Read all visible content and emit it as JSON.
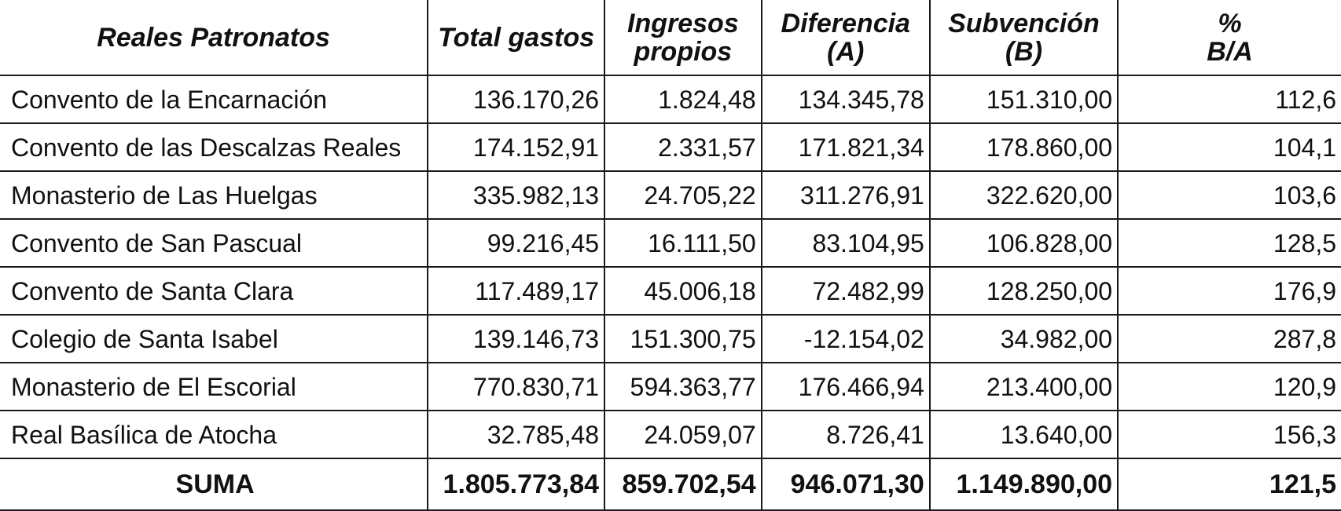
{
  "table": {
    "headers": [
      "Reales Patronatos",
      "Total gastos",
      "Ingresos\npropios",
      "Diferencia\n(A)",
      "Subvención\n(B)",
      "%\nB/A"
    ],
    "rows": [
      [
        "Convento de la Encarnación",
        "136.170,26",
        "1.824,48",
        "134.345,78",
        "151.310,00",
        "112,6"
      ],
      [
        "Convento de las Descalzas Reales",
        "174.152,91",
        "2.331,57",
        "171.821,34",
        "178.860,00",
        "104,1"
      ],
      [
        "Monasterio de Las Huelgas",
        "335.982,13",
        "24.705,22",
        "311.276,91",
        "322.620,00",
        "103,6"
      ],
      [
        "Convento de San Pascual",
        "99.216,45",
        "16.111,50",
        "83.104,95",
        "106.828,00",
        "128,5"
      ],
      [
        "Convento de Santa Clara",
        "117.489,17",
        "45.006,18",
        "72.482,99",
        "128.250,00",
        "176,9"
      ],
      [
        "Colegio de Santa Isabel",
        "139.146,73",
        "151.300,75",
        "-12.154,02",
        "34.982,00",
        "287,8"
      ],
      [
        "Monasterio de El Escorial",
        "770.830,71",
        "594.363,77",
        "176.466,94",
        "213.400,00",
        "120,9"
      ],
      [
        "Real Basílica de Atocha",
        "32.785,48",
        "24.059,07",
        "8.726,41",
        "13.640,00",
        "156,3"
      ]
    ],
    "total": [
      "SUMA",
      "1.805.773,84",
      "859.702,54",
      "946.071,30",
      "1.149.890,00",
      "121,5"
    ]
  }
}
